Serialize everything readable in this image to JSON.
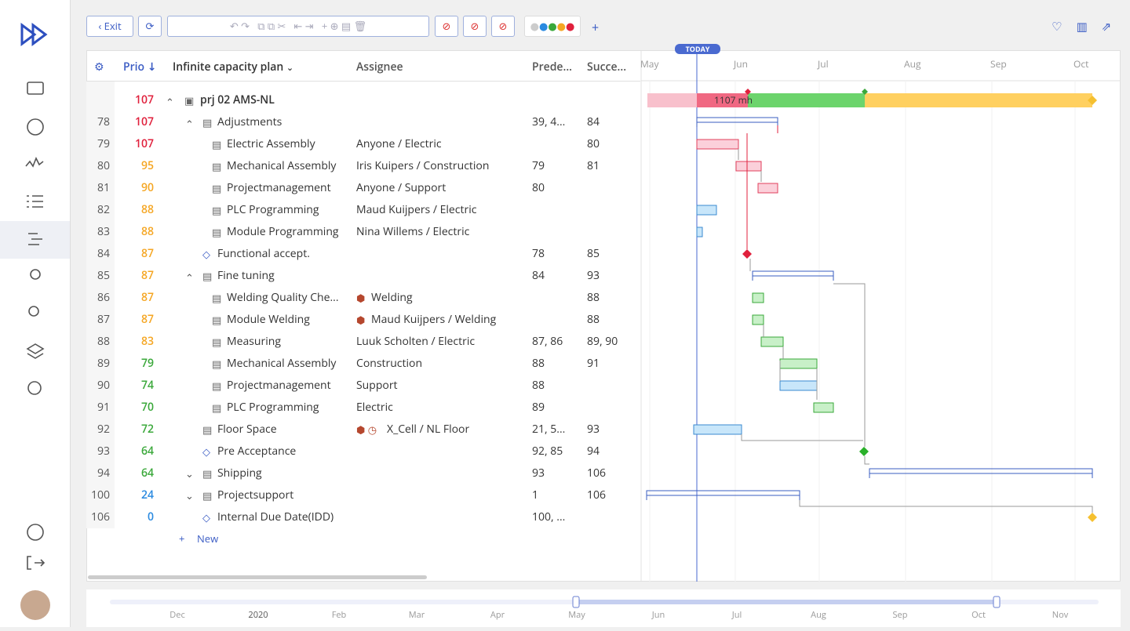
{
  "toolbar": {
    "exit": "Exit"
  },
  "table": {
    "headers": {
      "prio": "Prio",
      "plan": "Infinite capacity plan",
      "assignee": "Assignee",
      "predecessors": "Prede...",
      "successors": "Succe..."
    },
    "project": {
      "prio": "107",
      "name": "prj 02 AMS-NL",
      "prio_color": "#e0203c"
    },
    "rows": [
      {
        "id": "78",
        "prio": "107",
        "name": "Adjustments",
        "assignee": "",
        "pred": "39, 4...",
        "succ": "84",
        "prio_color": "#e0203c"
      },
      {
        "id": "79",
        "prio": "107",
        "name": "Electric Assembly",
        "assignee": "Anyone / Electric",
        "pred": "",
        "succ": "80",
        "prio_color": "#e0203c"
      },
      {
        "id": "80",
        "prio": "95",
        "name": "Mechanical Assembly",
        "assignee": "Iris Kuipers / Construction",
        "pred": "79",
        "succ": "81",
        "prio_color": "#f5a623"
      },
      {
        "id": "81",
        "prio": "90",
        "name": "Projectmanagement",
        "assignee": "Anyone / Support",
        "pred": "80",
        "succ": "",
        "prio_color": "#f5a623"
      },
      {
        "id": "82",
        "prio": "88",
        "name": "PLC Programming",
        "assignee": "Maud Kuijpers / Electric",
        "pred": "",
        "succ": "",
        "prio_color": "#f5a623"
      },
      {
        "id": "83",
        "prio": "88",
        "name": "Module Programming",
        "assignee": "Nina Willems / Electric",
        "pred": "",
        "succ": "",
        "prio_color": "#f5a623"
      },
      {
        "id": "84",
        "prio": "87",
        "name": "Functional accept.",
        "assignee": "",
        "pred": "78",
        "succ": "85",
        "prio_color": "#f5a623"
      },
      {
        "id": "85",
        "prio": "87",
        "name": "Fine tuning",
        "assignee": "",
        "pred": "84",
        "succ": "93",
        "prio_color": "#f5a623"
      },
      {
        "id": "86",
        "prio": "87",
        "name": "Welding Quality Che...",
        "assignee": "Welding",
        "pred": "",
        "succ": "88",
        "prio_color": "#f5a623"
      },
      {
        "id": "87",
        "prio": "87",
        "name": "Module Welding",
        "assignee": "Maud Kuijpers / Welding",
        "pred": "",
        "succ": "88",
        "prio_color": "#f5a623"
      },
      {
        "id": "88",
        "prio": "83",
        "name": "Measuring",
        "assignee": "Luuk Scholten / Electric",
        "pred": "87, 86",
        "succ": "89, 90",
        "prio_color": "#f5a623"
      },
      {
        "id": "89",
        "prio": "79",
        "name": "Mechanical Assembly",
        "assignee": "Construction",
        "pred": "88",
        "succ": "91",
        "prio_color": "#3aa83a"
      },
      {
        "id": "90",
        "prio": "74",
        "name": "Projectmanagement",
        "assignee": "Support",
        "pred": "88",
        "succ": "",
        "prio_color": "#3aa83a"
      },
      {
        "id": "91",
        "prio": "70",
        "name": "PLC Programming",
        "assignee": "Electric",
        "pred": "89",
        "succ": "",
        "prio_color": "#3aa83a"
      },
      {
        "id": "92",
        "prio": "72",
        "name": "Floor Space",
        "assignee": "X_Cell / NL Floor",
        "pred": "21, 5...",
        "succ": "93",
        "prio_color": "#3aa83a"
      },
      {
        "id": "93",
        "prio": "64",
        "name": "Pre Acceptance",
        "assignee": "",
        "pred": "92, 85",
        "succ": "94",
        "prio_color": "#3aa83a"
      },
      {
        "id": "94",
        "prio": "64",
        "name": "Shipping",
        "assignee": "",
        "pred": "93",
        "succ": "106",
        "prio_color": "#3aa83a"
      },
      {
        "id": "100",
        "prio": "24",
        "name": "Projectsupport",
        "assignee": "",
        "pred": "1",
        "succ": "106",
        "prio_color": "#2a8ae0"
      },
      {
        "id": "106",
        "prio": "0",
        "name": "Internal Due Date(IDD)",
        "assignee": "",
        "pred": "100, ...",
        "succ": "",
        "prio_color": "#2a8ae0"
      }
    ],
    "new": "New"
  },
  "gantt": {
    "today": "TODAY",
    "months": [
      "May",
      "Jun",
      "Jul",
      "Aug",
      "Sep",
      "Oct"
    ],
    "project_label": "1107 mh"
  },
  "navigator": {
    "months": [
      "Dec",
      "2020",
      "Feb",
      "Mar",
      "Apr",
      "May",
      "Jun",
      "Jul",
      "Aug",
      "Sep",
      "Oct",
      "Nov"
    ]
  }
}
